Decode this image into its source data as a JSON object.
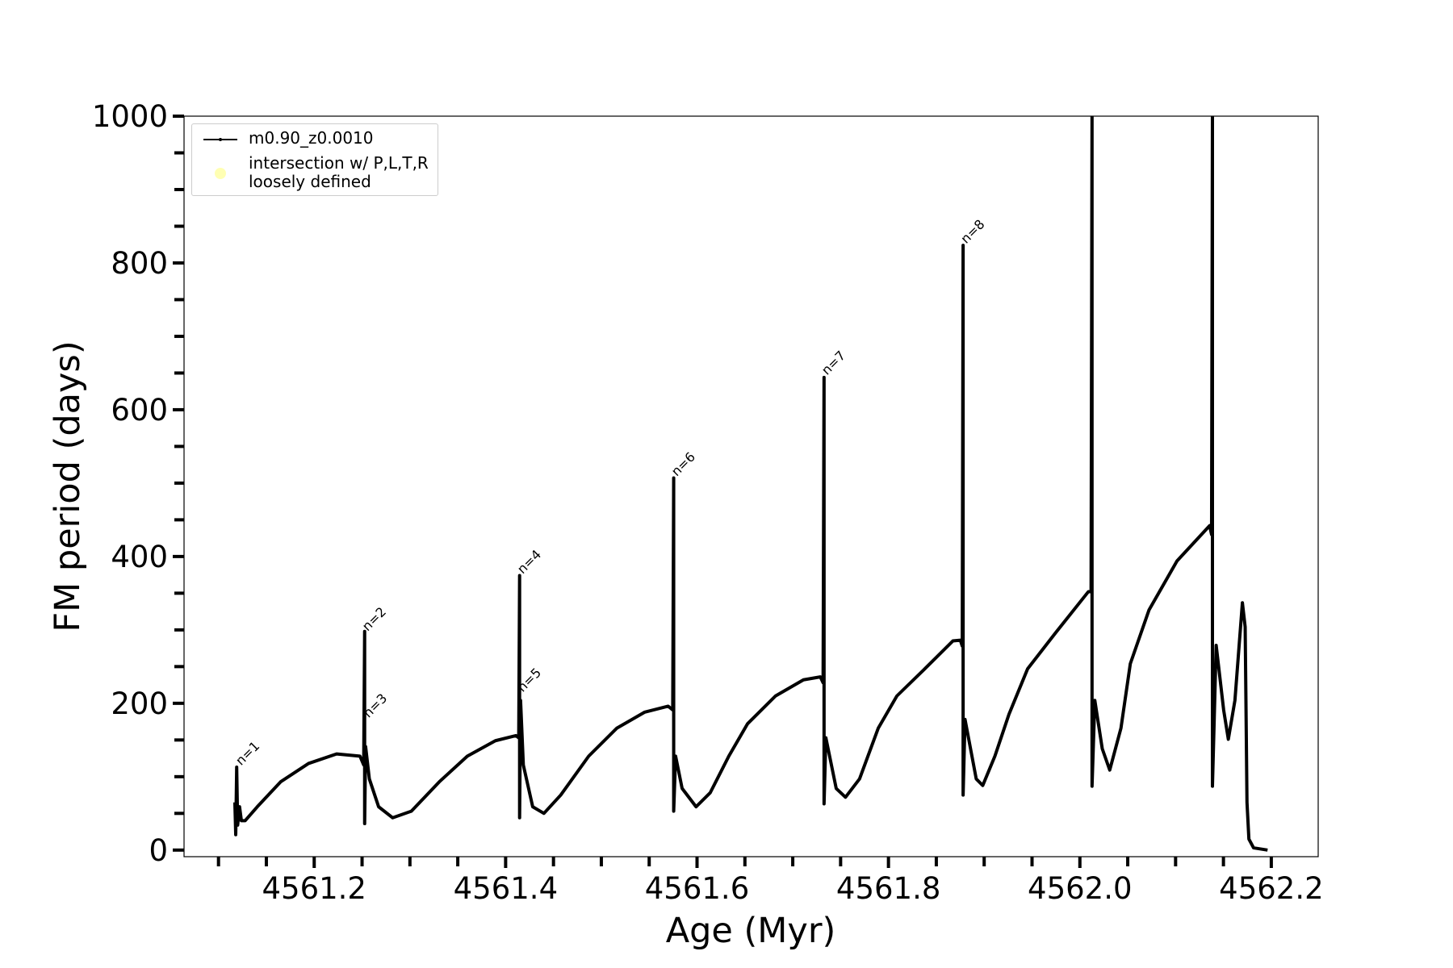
{
  "chart_data": {
    "type": "line",
    "xlabel": "Age (Myr)",
    "ylabel": "FM period (days)",
    "xlim": [
      4561.064,
      4562.249
    ],
    "ylim": [
      -9,
      1000
    ],
    "xticks": [
      4561.2,
      4561.4,
      4561.6,
      4561.8,
      {
        "value": 4562.0,
        "label": "4562.0"
      },
      4562.2
    ],
    "xminorticks": [
      4561.1,
      4561.15,
      4561.25,
      4561.3,
      4561.35,
      4561.45,
      4561.5,
      4561.55,
      4561.65,
      4561.7,
      4561.75,
      4561.85,
      4561.9,
      4561.95,
      4562.05,
      4562.1,
      4562.15
    ],
    "yticks": [
      0,
      200,
      400,
      600,
      800,
      1000
    ],
    "yminorticks": [
      50,
      100,
      150,
      250,
      300,
      350,
      450,
      500,
      550,
      650,
      700,
      750,
      850,
      900,
      950
    ],
    "legend": "upper left",
    "series": [
      {
        "name": "m0.90_z0.0010",
        "color": "#000000",
        "x": [
          4561.1171,
          4561.118,
          4561.119,
          4561.12,
          4561.122,
          4561.1239,
          4561.1278,
          4561.1405,
          4561.1649,
          4561.1941,
          4561.2234,
          4561.2478,
          4561.2517,
          4561.2527,
          4561.2527,
          4561.2537,
          4561.2576,
          4561.2673,
          4561.282,
          4561.3015,
          4561.3307,
          4561.36,
          4561.3893,
          4561.4107,
          4561.4137,
          4561.4146,
          4561.4146,
          4561.4156,
          4561.4185,
          4561.4283,
          4561.44,
          4561.4576,
          4561.4868,
          4561.5161,
          4561.5454,
          4561.5698,
          4561.5746,
          4561.5756,
          4561.5756,
          4561.5776,
          4561.5844,
          4561.599,
          4561.6137,
          4561.6332,
          4561.6527,
          4561.682,
          4561.7112,
          4561.7288,
          4561.7317,
          4561.7327,
          4561.7327,
          4561.7346,
          4561.7454,
          4561.7551,
          4561.7698,
          4561.7893,
          4561.8088,
          4561.838,
          4561.8673,
          4561.8751,
          4561.8771,
          4561.878,
          4561.878,
          4561.88,
          4561.8917,
          4561.8985,
          4561.9112,
          4561.9259,
          4561.9454,
          4561.9746,
          4562.0088,
          4562.0117,
          4562.0127,
          4562.0127,
          4562.0156,
          4562.0234,
          4562.0312,
          4562.0429,
          4562.0527,
          4562.0722,
          4562.1015,
          4562.1356,
          4562.1376,
          4562.1385,
          4562.1385,
          4562.1424,
          4562.1502,
          4562.1551,
          4562.162,
          4562.1698,
          4562.1727,
          4562.1746,
          4562.1766,
          4562.1815,
          4562.1961
        ],
        "values": [
          65,
          21,
          113,
          34,
          59,
          40,
          40,
          59,
          93,
          118,
          131,
          128,
          116,
          298,
          36,
          141,
          97,
          59,
          44,
          53,
          93,
          128,
          149,
          156,
          153,
          374,
          44,
          204,
          116,
          59,
          50,
          75,
          128,
          166,
          188,
          196,
          191,
          507,
          53,
          128,
          84,
          59,
          78,
          128,
          172,
          210,
          232,
          236,
          228,
          644,
          63,
          153,
          84,
          72,
          97,
          166,
          210,
          247,
          285,
          286,
          278,
          824,
          75,
          178,
          97,
          88,
          128,
          185,
          247,
          296,
          352,
          352,
          1000,
          87,
          204,
          138,
          109,
          166,
          254,
          327,
          394,
          442,
          430,
          1000,
          87,
          279,
          191,
          151,
          204,
          337,
          304,
          65,
          15,
          3,
          0
        ]
      },
      {
        "name": "intersection w/ P,L,T,R\nloosely defined",
        "type": "scatter",
        "color": "#ffffb3",
        "x": [],
        "values": []
      }
    ],
    "annotations": [
      {
        "text": "n=1",
        "x": 4561.1224,
        "y": 113
      },
      {
        "text": "n=2",
        "x": 4561.2546,
        "y": 296
      },
      {
        "text": "n=3",
        "x": 4561.2556,
        "y": 178
      },
      {
        "text": "n=4",
        "x": 4561.4166,
        "y": 374
      },
      {
        "text": "n=5",
        "x": 4561.4166,
        "y": 213
      },
      {
        "text": "n=6",
        "x": 4561.5776,
        "y": 507
      },
      {
        "text": "n=7",
        "x": 4561.7346,
        "y": 645
      },
      {
        "text": "n=8",
        "x": 4561.88,
        "y": 824
      }
    ]
  }
}
